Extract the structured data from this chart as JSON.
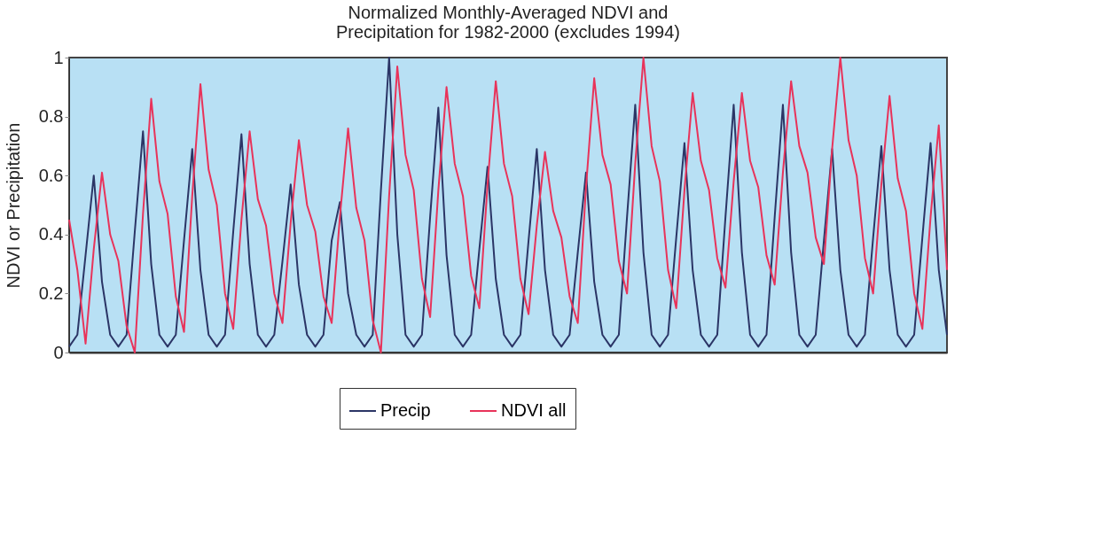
{
  "chart_data": {
    "type": "line",
    "title": "Normalized Monthly-Averaged NDVI and Precipitation for 1982-2000 (excludes 1994)",
    "ylabel": "NDVI or Precipitation",
    "categories": [
      null,
      null,
      null,
      null,
      null,
      null,
      null,
      null,
      null,
      null,
      null,
      null,
      null,
      null,
      null,
      null,
      null,
      null,
      null,
      null,
      null,
      null,
      null,
      null,
      null,
      null,
      null,
      null,
      null,
      null,
      null,
      null,
      null,
      null,
      null,
      null,
      null,
      null,
      null,
      null,
      null,
      null,
      null,
      null,
      null,
      null,
      null,
      null,
      null,
      null,
      null,
      null,
      null,
      null,
      null,
      null,
      null,
      null,
      null,
      null,
      null,
      null,
      null,
      null,
      null,
      null,
      null,
      null,
      null,
      null,
      null,
      null,
      null,
      null,
      null,
      null,
      null,
      null,
      null,
      null,
      null,
      null,
      null,
      null,
      null,
      null,
      null,
      null,
      null,
      null,
      null,
      null,
      null,
      null,
      null,
      null,
      null,
      null,
      null,
      null,
      null,
      null,
      null,
      null,
      null,
      null,
      null,
      null
    ],
    "series": [
      {
        "name": "Precip",
        "color": "#2b3566",
        "values": [
          0.02,
          0.06,
          0.33,
          0.6,
          0.24,
          0.06,
          0.02,
          0.06,
          0.41,
          0.75,
          0.3,
          0.06,
          0.02,
          0.06,
          0.38,
          0.69,
          0.28,
          0.06,
          0.02,
          0.06,
          0.41,
          0.74,
          0.3,
          0.06,
          0.02,
          0.06,
          0.31,
          0.57,
          0.23,
          0.06,
          0.02,
          0.06,
          0.38,
          0.51,
          0.2,
          0.06,
          0.02,
          0.06,
          0.55,
          1.0,
          0.4,
          0.06,
          0.02,
          0.06,
          0.46,
          0.83,
          0.33,
          0.06,
          0.02,
          0.06,
          0.35,
          0.63,
          0.25,
          0.06,
          0.02,
          0.06,
          0.38,
          0.69,
          0.28,
          0.06,
          0.02,
          0.06,
          0.34,
          0.61,
          0.24,
          0.06,
          0.02,
          0.06,
          0.46,
          0.84,
          0.34,
          0.06,
          0.02,
          0.06,
          0.39,
          0.71,
          0.28,
          0.06,
          0.02,
          0.06,
          0.46,
          0.84,
          0.34,
          0.06,
          0.02,
          0.06,
          0.46,
          0.84,
          0.34,
          0.06,
          0.02,
          0.06,
          0.38,
          0.69,
          0.28,
          0.06,
          0.02,
          0.06,
          0.39,
          0.7,
          0.28,
          0.06,
          0.02,
          0.06,
          0.39,
          0.71,
          0.28,
          0.06
        ]
      },
      {
        "name": "NDVI all",
        "color": "#e8335a",
        "values": [
          0.45,
          0.28,
          0.03,
          0.35,
          0.61,
          0.4,
          0.31,
          0.09,
          0.0,
          0.47,
          0.86,
          0.58,
          0.47,
          0.19,
          0.07,
          0.53,
          0.91,
          0.62,
          0.5,
          0.2,
          0.08,
          0.45,
          0.75,
          0.52,
          0.43,
          0.2,
          0.1,
          0.44,
          0.72,
          0.5,
          0.41,
          0.19,
          0.1,
          0.46,
          0.76,
          0.49,
          0.38,
          0.11,
          0.0,
          0.53,
          0.97,
          0.67,
          0.55,
          0.25,
          0.12,
          0.55,
          0.9,
          0.64,
          0.53,
          0.26,
          0.15,
          0.57,
          0.92,
          0.64,
          0.53,
          0.25,
          0.13,
          0.43,
          0.68,
          0.48,
          0.39,
          0.19,
          0.1,
          0.56,
          0.93,
          0.67,
          0.57,
          0.31,
          0.2,
          0.64,
          1.0,
          0.7,
          0.58,
          0.28,
          0.15,
          0.55,
          0.88,
          0.65,
          0.55,
          0.32,
          0.22,
          0.58,
          0.88,
          0.65,
          0.56,
          0.33,
          0.23,
          0.61,
          0.92,
          0.7,
          0.61,
          0.39,
          0.3,
          0.69,
          1.0,
          0.72,
          0.6,
          0.32,
          0.2,
          0.57,
          0.87,
          0.59,
          0.48,
          0.2,
          0.08,
          0.46,
          0.77,
          0.28
        ]
      }
    ],
    "ylim": [
      0,
      1
    ],
    "yticks": [
      0,
      0.2,
      0.4,
      0.6,
      0.8,
      1
    ],
    "grid": false,
    "legend": "bottom",
    "tick_labels": "y",
    "line_style": "solid"
  }
}
